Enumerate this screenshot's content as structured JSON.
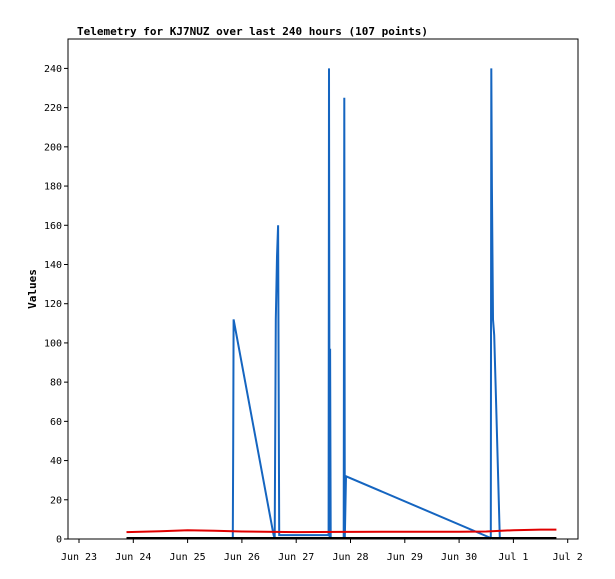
{
  "chart_data": {
    "type": "line",
    "title": "Telemetry for KJ7NUZ over last 240 hours (107 points)",
    "ylabel": "Values",
    "xlabel": "",
    "x_ticks": [
      "Jun 23",
      "Jun 24",
      "Jun 25",
      "Jun 26",
      "Jun 27",
      "Jun 28",
      "Jun 29",
      "Jun 30",
      "Jul 1",
      "Jul 2"
    ],
    "x_range": [
      "Jun 23",
      "Jul 2"
    ],
    "y_ticks": [
      0,
      20,
      40,
      60,
      80,
      100,
      120,
      140,
      160,
      180,
      200,
      220,
      240
    ],
    "ylim": [
      0,
      255
    ],
    "grid": false,
    "legend": "none",
    "series": [
      {
        "color": "#1565c0",
        "points": [
          [
            "Jun 25 20:00",
            0
          ],
          [
            "Jun 25 20:10",
            48
          ],
          [
            "Jun 25 20:20",
            112
          ],
          [
            "Jun 26 14:00",
            2
          ],
          [
            "Jun 26 14:30",
            0
          ],
          [
            "Jun 26 15:00",
            112
          ],
          [
            "Jun 26 15:30",
            144
          ],
          [
            "Jun 26 16:00",
            160
          ],
          [
            "Jun 26 16:30",
            2
          ],
          [
            "Jun 27 14:20",
            2
          ],
          [
            "Jun 27 14:30",
            240
          ],
          [
            "Jun 27 14:45",
            0
          ],
          [
            "Jun 27 15:00",
            97
          ],
          [
            "Jun 27 15:15",
            0
          ],
          [
            "Jun 27 21:00",
            0
          ],
          [
            "Jun 27 21:15",
            225
          ],
          [
            "Jun 27 21:30",
            0
          ],
          [
            "Jun 27 22:00",
            32
          ],
          [
            "Jun 30 14:00",
            0
          ],
          [
            "Jun 30 14:15",
            240
          ],
          [
            "Jun 30 14:30",
            180
          ],
          [
            "Jun 30 15:00",
            112
          ],
          [
            "Jun 30 15:30",
            104
          ],
          [
            "Jun 30 16:30",
            64
          ],
          [
            "Jun 30 18:00",
            0
          ]
        ]
      },
      {
        "color": "#e00000",
        "points": [
          [
            "Jun 23 21:00",
            3.5
          ],
          [
            "Jun 24 12:00",
            4
          ],
          [
            "Jun 25 00:00",
            4.5
          ],
          [
            "Jun 25 12:00",
            4.2
          ],
          [
            "Jun 26 00:00",
            3.8
          ],
          [
            "Jun 27 00:00",
            3.5
          ],
          [
            "Jun 27 20:00",
            3.6
          ],
          [
            "Jun 28 00:00",
            3.6
          ],
          [
            "Jun 29 00:00",
            3.7
          ],
          [
            "Jun 30 00:00",
            3.7
          ],
          [
            "Jun 30 12:00",
            3.8
          ],
          [
            "Jul 1 00:00",
            4.5
          ],
          [
            "Jul 1 12:00",
            4.8
          ],
          [
            "Jul 1 19:00",
            4.8
          ]
        ]
      },
      {
        "color": "#000000",
        "points": [
          [
            "Jun 23 21:00",
            0
          ],
          [
            "Jul 1 19:00",
            0
          ]
        ]
      }
    ]
  }
}
